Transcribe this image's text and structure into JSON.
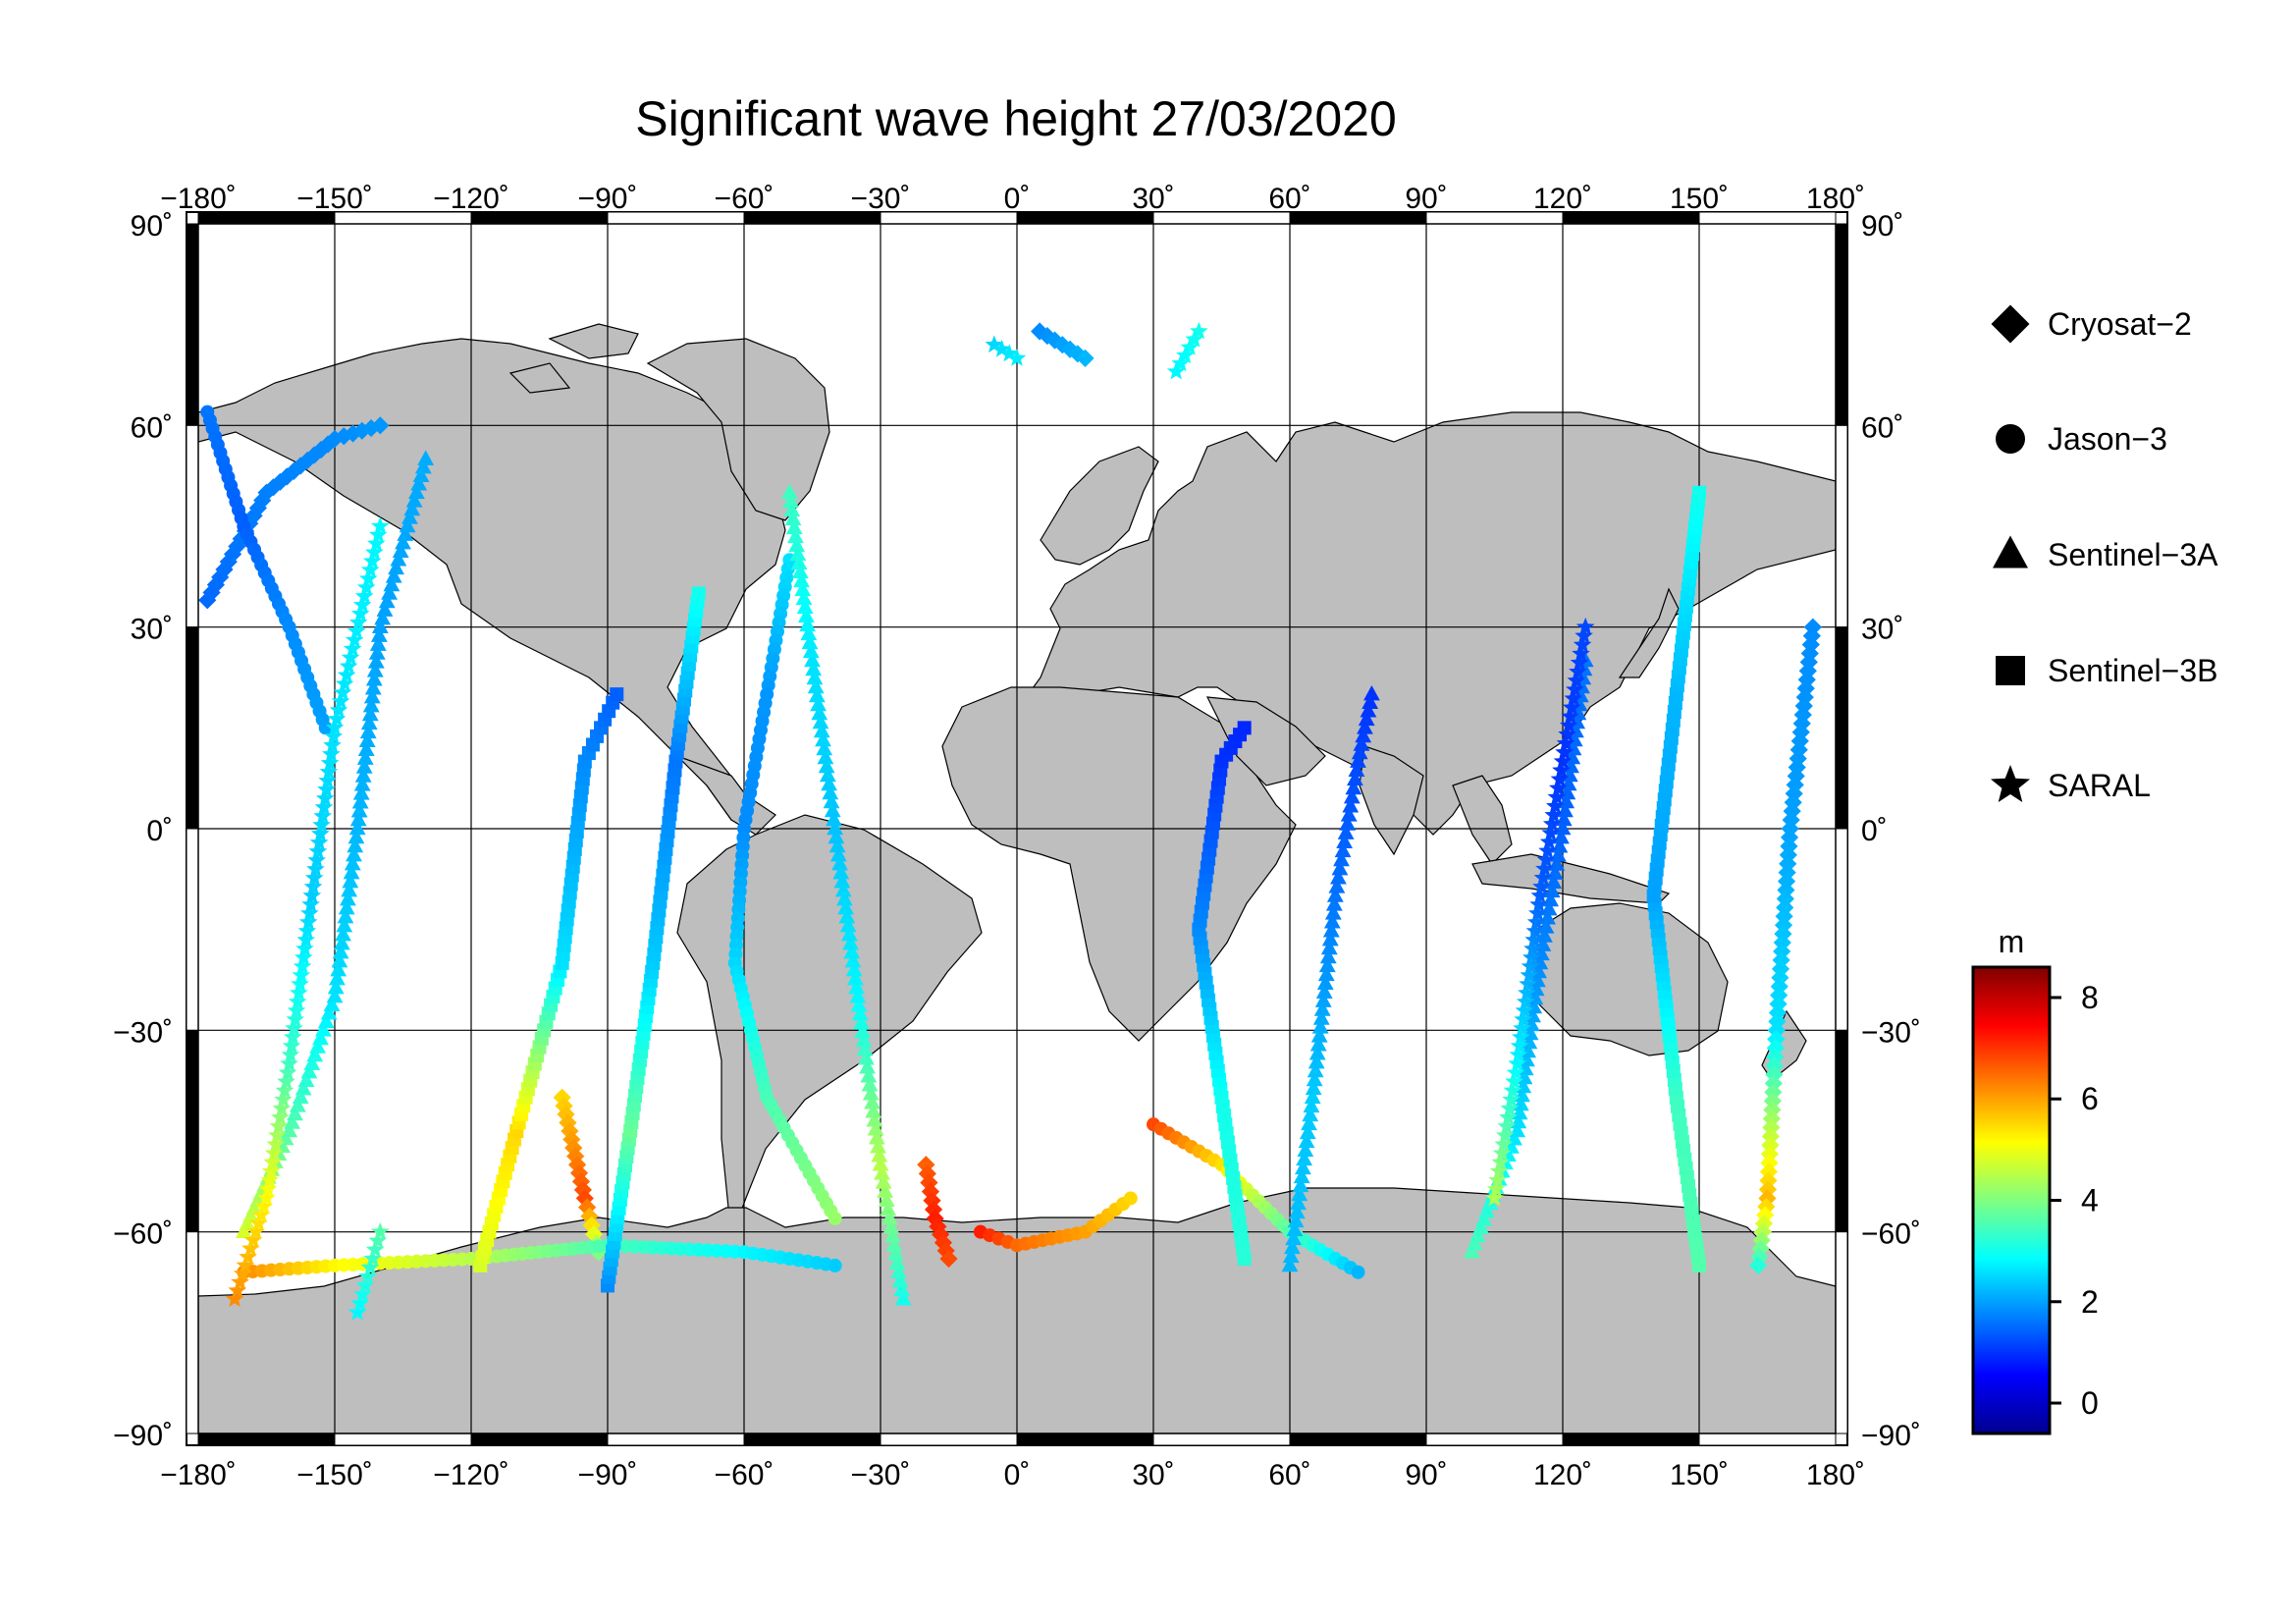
{
  "title": "Significant wave height 27/03/2020",
  "map": {
    "lon_range": [
      -180,
      180
    ],
    "lat_range": [
      -90,
      90
    ],
    "lon_tick_labels": [
      "−180˚",
      "−150˚",
      "−120˚",
      "−90˚",
      "−60˚",
      "−30˚",
      "0˚",
      "30˚",
      "60˚",
      "90˚",
      "120˚",
      "150˚",
      "180˚"
    ],
    "lat_tick_labels": [
      "90˚",
      "60˚",
      "30˚",
      "0˚",
      "−30˚",
      "−60˚",
      "−90˚"
    ],
    "land_color": "#bebebe",
    "ocean_color": "#ffffff",
    "grid": true
  },
  "legend": {
    "placement": "right",
    "items": [
      {
        "label": "Cryosat−2",
        "marker": "diamond"
      },
      {
        "label": "Jason−3",
        "marker": "circle"
      },
      {
        "label": "Sentinel−3A",
        "marker": "triangle"
      },
      {
        "label": "Sentinel−3B",
        "marker": "square"
      },
      {
        "label": "SARAL",
        "marker": "star"
      }
    ]
  },
  "colorbar": {
    "unit": "m",
    "range": [
      -0.6,
      8.6
    ],
    "tick_labels": [
      "0",
      "2",
      "4",
      "6",
      "8"
    ],
    "colormap": [
      "#00008f",
      "#0000ff",
      "#0080ff",
      "#00ffff",
      "#80ff80",
      "#ffff00",
      "#ff8000",
      "#ff0000",
      "#800000"
    ]
  },
  "chart_data": {
    "type": "scatter",
    "title": "Significant wave height 27/03/2020",
    "xlabel": "",
    "ylabel": "",
    "xlim": [
      -180,
      180
    ],
    "ylim": [
      -90,
      90
    ],
    "color_variable": "significant wave height (m)",
    "series": [
      {
        "name": "Cryosat−2",
        "marker": "diamond",
        "tracks": [
          {
            "points": [
              [
                -178,
                34,
                1.5
              ],
              [
                -165,
                50,
                1.7
              ],
              [
                -150,
                58,
                1.8
              ],
              [
                -140,
                60,
                1.9
              ]
            ]
          },
          {
            "points": [
              [
                -100,
                -40,
                5.5
              ],
              [
                -95,
                -55,
                6.8
              ],
              [
                -92,
                -63,
                4.0
              ]
            ]
          },
          {
            "points": [
              [
                -20,
                -50,
                6.6
              ],
              [
                -18,
                -58,
                7.2
              ],
              [
                -15,
                -64,
                6.8
              ]
            ]
          },
          {
            "points": [
              [
                175,
                30,
                1.8
              ],
              [
                170,
                0,
                2.0
              ],
              [
                167,
                -30,
                2.6
              ],
              [
                165,
                -55,
                5.8
              ],
              [
                163,
                -65,
                3.2
              ]
            ]
          },
          {
            "points": [
              [
                5,
                74,
                1.8
              ],
              [
                10,
                72,
                2.0
              ],
              [
                15,
                70,
                2.2
              ]
            ]
          }
        ]
      },
      {
        "name": "Jason−3",
        "marker": "circle",
        "tracks": [
          {
            "points": [
              [
                -178,
                62,
                1.6
              ],
              [
                -170,
                45,
                1.4
              ],
              [
                -160,
                30,
                1.8
              ],
              [
                -152,
                15,
                2.0
              ]
            ]
          },
          {
            "points": [
              [
                -50,
                40,
                2.6
              ],
              [
                -55,
                20,
                1.9
              ],
              [
                -60,
                0,
                1.8
              ],
              [
                -62,
                -20,
                2.5
              ],
              [
                -55,
                -40,
                3.5
              ],
              [
                -40,
                -58,
                4.2
              ]
            ]
          },
          {
            "points": [
              [
                -8,
                -60,
                7.2
              ],
              [
                0,
                -62,
                6.5
              ],
              [
                15,
                -60,
                6.0
              ],
              [
                25,
                -55,
                5.5
              ]
            ]
          },
          {
            "points": [
              [
                30,
                -44,
                6.8
              ],
              [
                45,
                -50,
                5.4
              ],
              [
                60,
                -60,
                3.6
              ],
              [
                75,
                -66,
                2.2
              ]
            ]
          },
          {
            "points": [
              [
                -170,
                -66,
                6.2
              ],
              [
                -150,
                -65,
                5.2
              ],
              [
                -120,
                -64,
                4.5
              ],
              [
                -90,
                -62,
                3.5
              ],
              [
                -60,
                -63,
                2.8
              ],
              [
                -40,
                -65,
                2.4
              ]
            ]
          }
        ]
      },
      {
        "name": "Sentinel−3A",
        "marker": "triangle",
        "tracks": [
          {
            "points": [
              [
                -170,
                -60,
                4.8
              ],
              [
                -160,
                -45,
                3.6
              ],
              [
                -150,
                -25,
                2.6
              ],
              [
                -145,
                0,
                2.2
              ],
              [
                -140,
                30,
                2.0
              ],
              [
                -130,
                55,
                2.1
              ]
            ]
          },
          {
            "points": [
              [
                -25,
                -70,
                3.0
              ],
              [
                -30,
                -50,
                4.5
              ],
              [
                -35,
                -25,
                2.8
              ],
              [
                -40,
                0,
                2.3
              ],
              [
                -45,
                25,
                2.6
              ],
              [
                -50,
                50,
                3.4
              ]
            ]
          },
          {
            "points": [
              [
                60,
                -65,
                2.2
              ],
              [
                65,
                -40,
                2.4
              ],
              [
                70,
                -10,
                1.6
              ],
              [
                75,
                10,
                1.2
              ],
              [
                78,
                20,
                1.0
              ]
            ]
          },
          {
            "points": [
              [
                100,
                -63,
                3.5
              ],
              [
                110,
                -45,
                2.6
              ],
              [
                115,
                -20,
                1.8
              ],
              [
                120,
                0,
                1.4
              ],
              [
                125,
                25,
                1.6
              ]
            ]
          }
        ]
      },
      {
        "name": "Sentinel−3B",
        "marker": "square",
        "tracks": [
          {
            "points": [
              [
                -118,
                -65,
                4.8
              ],
              [
                -110,
                -45,
                5.5
              ],
              [
                -100,
                -20,
                2.6
              ],
              [
                -95,
                10,
                1.8
              ],
              [
                -88,
                20,
                1.4
              ]
            ]
          },
          {
            "points": [
              [
                50,
                -64,
                3.2
              ],
              [
                45,
                -40,
                3.0
              ],
              [
                40,
                -15,
                1.8
              ],
              [
                45,
                10,
                1.0
              ],
              [
                50,
                15,
                0.9
              ]
            ]
          },
          {
            "points": [
              [
                150,
                -65,
                3.6
              ],
              [
                145,
                -40,
                3.4
              ],
              [
                140,
                -10,
                2.0
              ],
              [
                145,
                20,
                2.2
              ],
              [
                150,
                50,
                3.0
              ]
            ]
          },
          {
            "points": [
              [
                -90,
                -68,
                1.8
              ],
              [
                -85,
                -45,
                3.8
              ],
              [
                -80,
                -20,
                2.4
              ],
              [
                -75,
                10,
                1.6
              ],
              [
                -70,
                35,
                3.0
              ]
            ]
          }
        ]
      },
      {
        "name": "SARAL",
        "marker": "star",
        "tracks": [
          {
            "points": [
              [
                -172,
                -70,
                6.2
              ],
              [
                -165,
                -55,
                5.2
              ],
              [
                -160,
                -35,
                3.4
              ],
              [
                -155,
                -10,
                2.4
              ],
              [
                -150,
                15,
                2.6
              ],
              [
                -140,
                45,
                2.8
              ]
            ]
          },
          {
            "points": [
              [
                40,
                74,
                3.0
              ],
              [
                35,
                68,
                2.8
              ]
            ]
          },
          {
            "points": [
              [
                -5,
                72,
                2.5
              ],
              [
                0,
                70,
                2.7
              ]
            ]
          },
          {
            "points": [
              [
                125,
                30,
                1.2
              ],
              [
                120,
                10,
                1.0
              ],
              [
                115,
                -10,
                1.4
              ],
              [
                110,
                -35,
                2.8
              ],
              [
                105,
                -55,
                4.4
              ]
            ]
          },
          {
            "points": [
              [
                -145,
                -72,
                2.8
              ],
              [
                -140,
                -60,
                3.6
              ]
            ]
          }
        ]
      }
    ]
  }
}
